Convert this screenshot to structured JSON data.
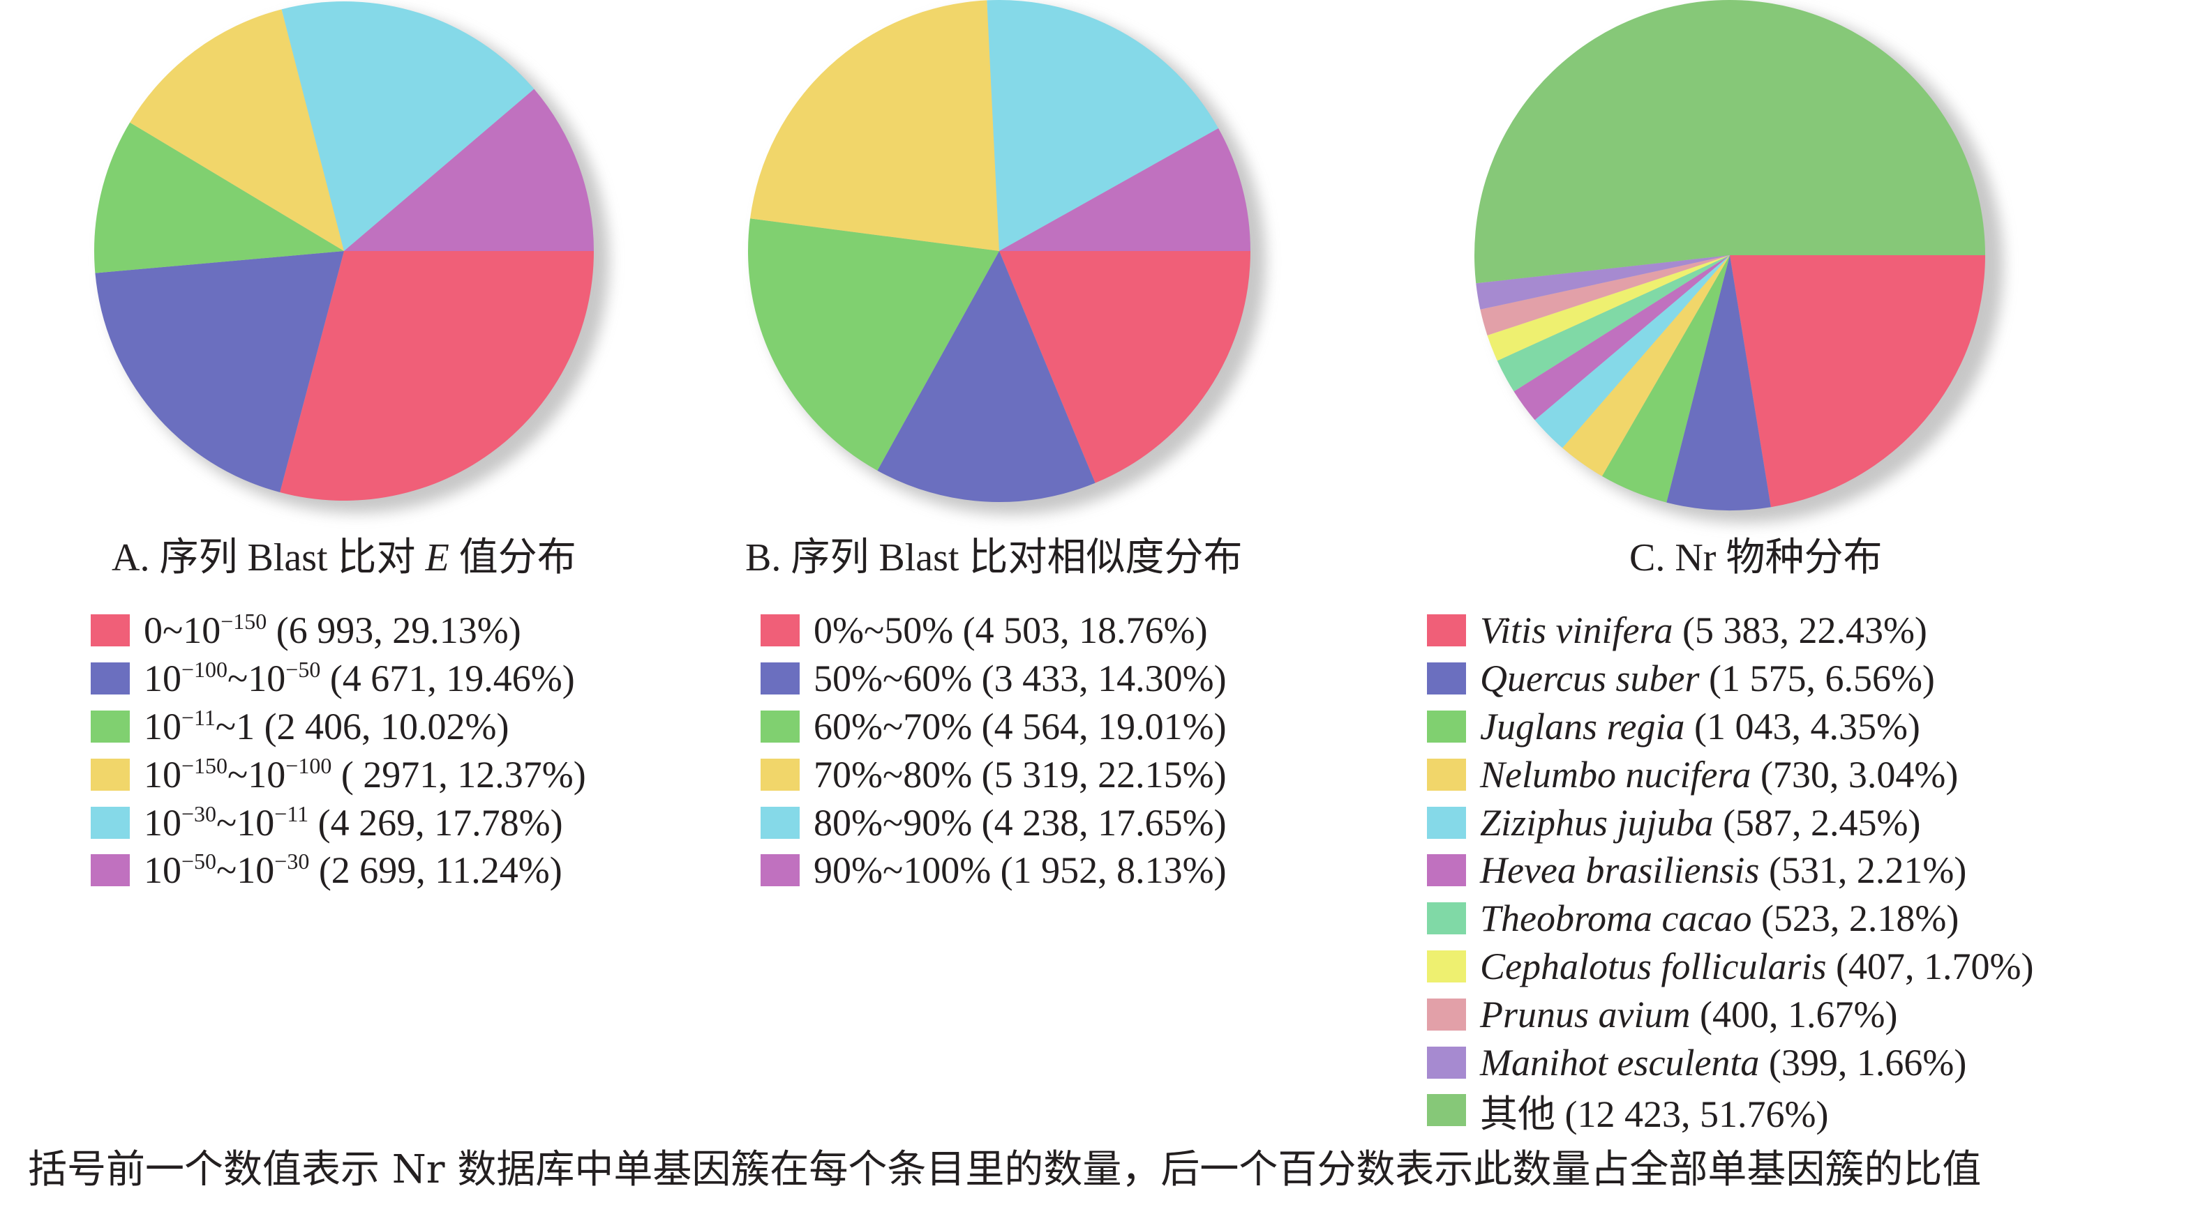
{
  "chart_data": [
    {
      "type": "pie",
      "title": "A. 序列 Blast 比对 E 值分布",
      "slices": [
        {
          "label": "0~10^-150",
          "count": 6993,
          "percent": 29.13,
          "color": "#f05f78"
        },
        {
          "label": "10^-100~10^-50",
          "count": 4671,
          "percent": 19.46,
          "color": "#6b6fbf"
        },
        {
          "label": "10^-11~1",
          "count": 2406,
          "percent": 10.02,
          "color": "#80d070"
        },
        {
          "label": "10^-150~10^-100",
          "count": 2971,
          "percent": 12.37,
          "color": "#f1d66a"
        },
        {
          "label": "10^-30~10^-11",
          "count": 4269,
          "percent": 17.78,
          "color": "#85d9e8"
        },
        {
          "label": "10^-50~10^-30",
          "count": 2699,
          "percent": 11.24,
          "color": "#c071bf"
        }
      ]
    },
    {
      "type": "pie",
      "title": "B. 序列 Blast 比对相似度分布",
      "slices": [
        {
          "label": "0%~50%",
          "count": 4503,
          "percent": 18.76,
          "color": "#f05f78"
        },
        {
          "label": "50%~60%",
          "count": 3433,
          "percent": 14.3,
          "color": "#6b6fbf"
        },
        {
          "label": "60%~70%",
          "count": 4564,
          "percent": 19.01,
          "color": "#80d070"
        },
        {
          "label": "70%~80%",
          "count": 5319,
          "percent": 22.15,
          "color": "#f1d66a"
        },
        {
          "label": "80%~90%",
          "count": 4238,
          "percent": 17.65,
          "color": "#85d9e8"
        },
        {
          "label": "90%~100%",
          "count": 1952,
          "percent": 8.13,
          "color": "#c071bf"
        }
      ]
    },
    {
      "type": "pie",
      "title": "C. Nr 物种分布",
      "slices": [
        {
          "label": "Vitis vinifera",
          "count": 5383,
          "percent": 22.43,
          "color": "#f05f78"
        },
        {
          "label": "Quercus suber",
          "count": 1575,
          "percent": 6.56,
          "color": "#6b6fbf"
        },
        {
          "label": "Juglans regia",
          "count": 1043,
          "percent": 4.35,
          "color": "#80d070"
        },
        {
          "label": "Nelumbo nucifera",
          "count": 730,
          "percent": 3.04,
          "color": "#f1d66a"
        },
        {
          "label": "Ziziphus jujuba",
          "count": 587,
          "percent": 2.45,
          "color": "#85d9e8"
        },
        {
          "label": "Hevea brasiliensis",
          "count": 531,
          "percent": 2.21,
          "color": "#c071bf"
        },
        {
          "label": "Theobroma cacao",
          "count": 523,
          "percent": 2.18,
          "color": "#80d9a6"
        },
        {
          "label": "Cephalotus follicularis",
          "count": 407,
          "percent": 1.7,
          "color": "#eef070"
        },
        {
          "label": "Prunus avium",
          "count": 400,
          "percent": 1.67,
          "color": "#e2a0a8"
        },
        {
          "label": "Manihot esculenta",
          "count": 399,
          "percent": 1.66,
          "color": "#a68ad0"
        },
        {
          "label": "其他",
          "count": 12423,
          "percent": 51.76,
          "color": "#86c878"
        }
      ]
    }
  ],
  "legend_a": {
    "items": [
      {
        "base": "0~10",
        "sup1": "−150",
        "mid": "",
        "sup2": "",
        "rest": " (6 993, 29.13%)",
        "color": "#f05f78"
      },
      {
        "base": "10",
        "sup1": "−100",
        "mid": "~10",
        "sup2": "−50",
        "rest": " (4 671, 19.46%)",
        "color": "#6b6fbf"
      },
      {
        "base": "10",
        "sup1": "−11",
        "mid": "~1",
        "sup2": "",
        "rest": " (2 406, 10.02%)",
        "color": "#80d070"
      },
      {
        "base": "10",
        "sup1": "−150",
        "mid": "~10",
        "sup2": "−100",
        "rest": " ( 2971, 12.37%)",
        "color": "#f1d66a"
      },
      {
        "base": "10",
        "sup1": "−30",
        "mid": "~10",
        "sup2": "−11",
        "rest": " (4 269, 17.78%)",
        "color": "#85d9e8"
      },
      {
        "base": "10",
        "sup1": "−50",
        "mid": "~10",
        "sup2": "−30",
        "rest": " (2 699, 11.24%)",
        "color": "#c071bf"
      }
    ]
  },
  "legend_b": {
    "items": [
      {
        "text": "0%~50% (4 503, 18.76%)",
        "color": "#f05f78"
      },
      {
        "text": "50%~60% (3 433, 14.30%)",
        "color": "#6b6fbf"
      },
      {
        "text": "60%~70% (4 564, 19.01%)",
        "color": "#80d070"
      },
      {
        "text": "70%~80% (5 319, 22.15%)",
        "color": "#f1d66a"
      },
      {
        "text": "80%~90% (4 238, 17.65%)",
        "color": "#85d9e8"
      },
      {
        "text": "90%~100% (1 952, 8.13%)",
        "color": "#c071bf"
      }
    ]
  },
  "legend_c": {
    "items": [
      {
        "species": "Vitis vinifera",
        "rest": " (5 383, 22.43%)",
        "color": "#f05f78"
      },
      {
        "species": "Quercus suber",
        "rest": " (1 575, 6.56%)",
        "color": "#6b6fbf"
      },
      {
        "species": "Juglans regia",
        "rest": " (1 043, 4.35%)",
        "color": "#80d070"
      },
      {
        "species": "Nelumbo nucifera",
        "rest": " (730, 3.04%)",
        "color": "#f1d66a"
      },
      {
        "species": "Ziziphus jujuba",
        "rest": " (587, 2.45%)",
        "color": "#85d9e8"
      },
      {
        "species": "Hevea brasiliensis",
        "rest": " (531, 2.21%)",
        "color": "#c071bf"
      },
      {
        "species": "Theobroma cacao",
        "rest": " (523, 2.18%)",
        "color": "#80d9a6"
      },
      {
        "species": "Cephalotus follicularis",
        "rest": " (407, 1.70%)",
        "color": "#eef070"
      },
      {
        "species": "Prunus avium",
        "rest": " (400, 1.67%)",
        "color": "#e2a0a8"
      },
      {
        "species": "Manihot esculenta",
        "rest": " (399, 1.66%)",
        "color": "#a68ad0"
      },
      {
        "species": "",
        "rest": "其他 (12 423, 51.76%)",
        "color": "#86c878"
      }
    ]
  },
  "titles": {
    "a": "A. 序列 Blast 比对 E 值分布",
    "b": "B. 序列 Blast 比对相似度分布",
    "c": "C. Nr 物种分布"
  },
  "footnote": "括号前一个数值表示 Nr 数据库中单基因簇在每个条目里的数量，后一个百分数表示此数量占全部单基因簇的比值"
}
